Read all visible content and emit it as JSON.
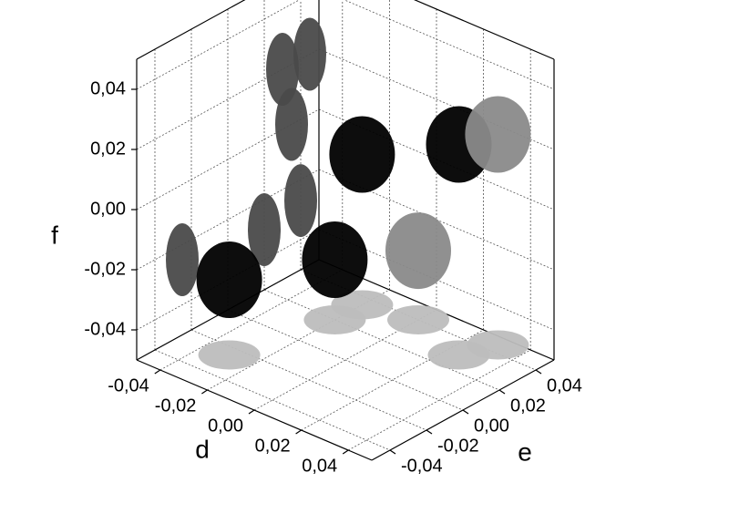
{
  "chart_data": {
    "type": "scatter3d",
    "xlabel": "d",
    "ylabel": "e",
    "zlabel": "f",
    "xlim": [
      -0.05,
      0.05
    ],
    "ylim": [
      -0.05,
      0.05
    ],
    "zlim": [
      -0.05,
      0.05
    ],
    "xticks": [
      {
        "value": -0.04,
        "label": "-0,04"
      },
      {
        "value": -0.02,
        "label": "-0,02"
      },
      {
        "value": 0,
        "label": "0,00"
      },
      {
        "value": 0.02,
        "label": "0,02"
      },
      {
        "value": 0.04,
        "label": "0,04"
      }
    ],
    "yticks": [
      {
        "value": -0.04,
        "label": "-0,04"
      },
      {
        "value": -0.02,
        "label": "-0,02"
      },
      {
        "value": 0,
        "label": "0,00"
      },
      {
        "value": 0.02,
        "label": "0,02"
      },
      {
        "value": 0.04,
        "label": "0,04"
      }
    ],
    "zticks": [
      {
        "value": -0.04,
        "label": "-0,04"
      },
      {
        "value": -0.02,
        "label": "-0,02"
      },
      {
        "value": 0,
        "label": "0,00"
      },
      {
        "value": 0.02,
        "label": "0,02"
      },
      {
        "value": 0.04,
        "label": "0,04"
      }
    ],
    "grid": true,
    "wall_color": "#4a4a4a",
    "floor_color": "#bdbdbd",
    "series": [
      {
        "color": "#000000",
        "x": [
          -0.03,
          0.025,
          -0.02,
          -0.02
        ],
        "y": [
          -0.025,
          0.03,
          0.035,
          0.02
        ],
        "z": [
          -0.025,
          0.02,
          0.0,
          -0.03
        ]
      },
      {
        "color": "#8a8a8a",
        "x": [
          0.03,
          0.0
        ],
        "y": [
          0.045,
          0.04
        ],
        "z": [
          0.02,
          -0.027
        ]
      }
    ]
  }
}
